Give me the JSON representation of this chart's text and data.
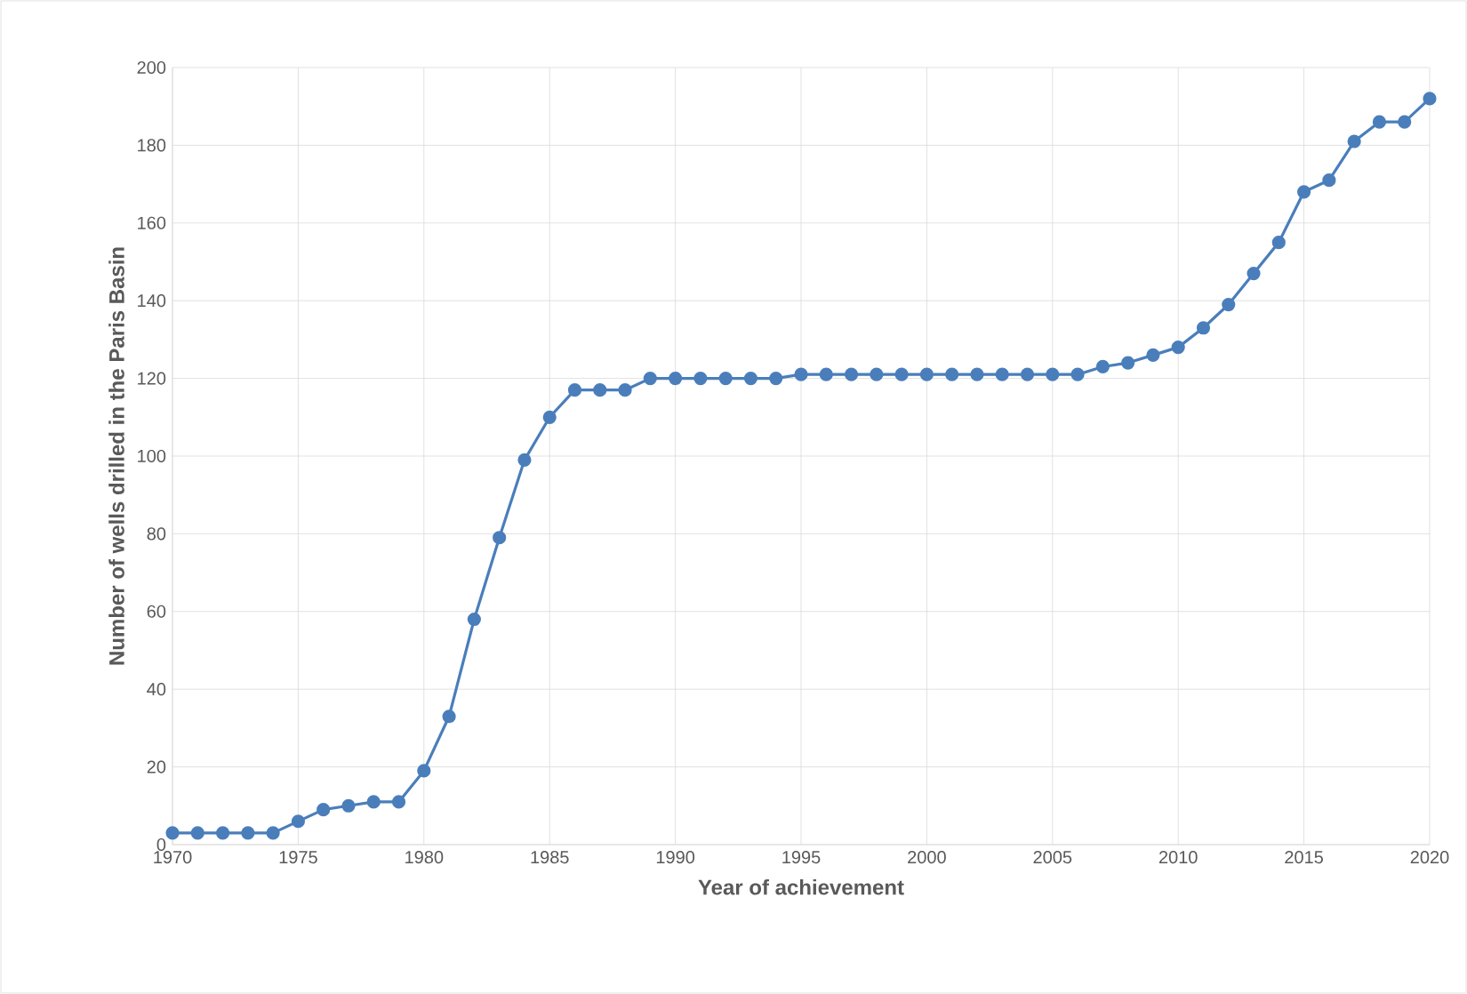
{
  "chart_data": {
    "type": "line",
    "xlabel": "Year of achievement",
    "ylabel": "Number of wells drilled in the Paris Basin",
    "x": [
      1970,
      1971,
      1972,
      1973,
      1974,
      1975,
      1976,
      1977,
      1978,
      1979,
      1980,
      1981,
      1982,
      1983,
      1984,
      1985,
      1986,
      1987,
      1988,
      1989,
      1990,
      1991,
      1992,
      1993,
      1994,
      1995,
      1996,
      1997,
      1998,
      1999,
      2000,
      2001,
      2002,
      2003,
      2004,
      2005,
      2006,
      2007,
      2008,
      2009,
      2010,
      2011,
      2012,
      2013,
      2014,
      2015,
      2016,
      2017,
      2018,
      2019,
      2020
    ],
    "series": [
      {
        "color": "#4a7ebb",
        "values": [
          3,
          3,
          3,
          3,
          3,
          6,
          9,
          10,
          11,
          11,
          19,
          33,
          58,
          79,
          99,
          110,
          117,
          117,
          117,
          120,
          120,
          120,
          120,
          120,
          120,
          121,
          121,
          121,
          121,
          121,
          121,
          121,
          121,
          121,
          121,
          121,
          121,
          123,
          124,
          126,
          128,
          133,
          139,
          147,
          155,
          168,
          171,
          181,
          186,
          186,
          192
        ]
      }
    ],
    "xlim": [
      1970,
      2020
    ],
    "xticks": [
      1970,
      1975,
      1980,
      1985,
      1990,
      1995,
      2000,
      2005,
      2010,
      2015,
      2020
    ],
    "ylim": [
      0,
      200
    ],
    "yticks": [
      0,
      20,
      40,
      60,
      80,
      100,
      120,
      140,
      160,
      180,
      200
    ],
    "grid": true,
    "marker": "circle",
    "line_style": "solid"
  }
}
